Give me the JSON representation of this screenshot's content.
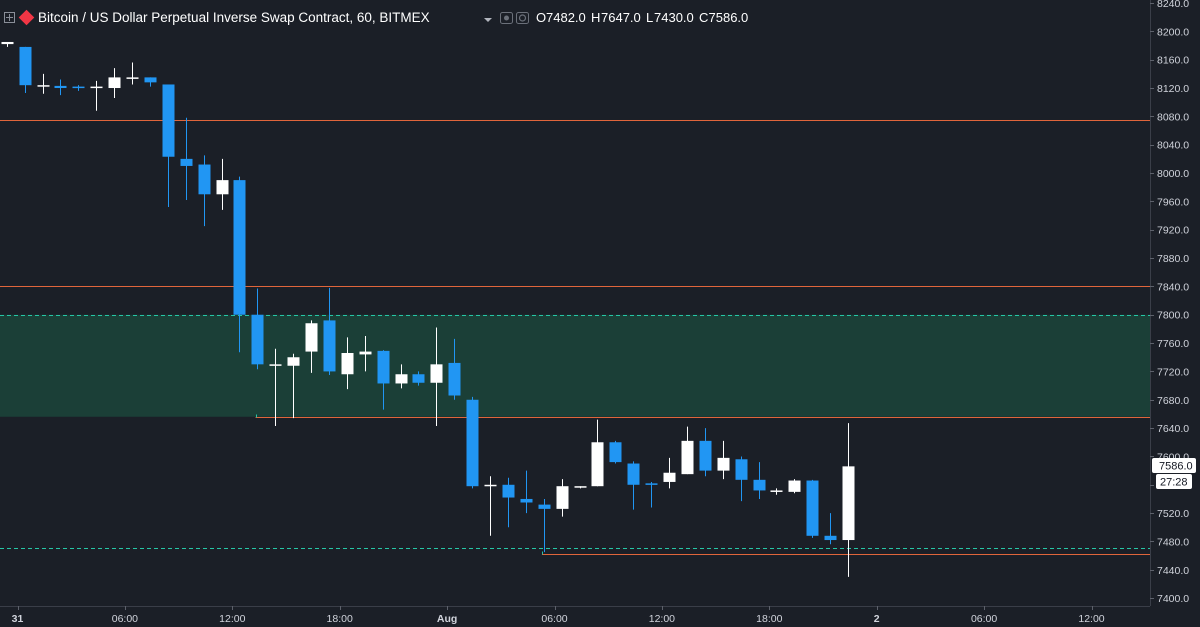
{
  "header": {
    "title": "Bitcoin / US Dollar Perpetual Inverse Swap Contract, 60, BITMEX",
    "ohlc": [
      {
        "label": "O",
        "value": "7482.0"
      },
      {
        "label": "H",
        "value": "7647.0"
      },
      {
        "label": "L",
        "value": "7430.0"
      },
      {
        "label": "C",
        "value": "7586.0"
      }
    ]
  },
  "price_tag": {
    "value": "7586.0",
    "countdown": "27:28"
  },
  "colors": {
    "background": "#1b1f27",
    "bull": "#ffffff",
    "bear": "#2196f3",
    "zone_fill": "#1b3f37",
    "level_line": "#e0653b",
    "dashed_line": "#26c6a6",
    "axis_text": "#d1d4dc"
  },
  "chart_data": {
    "type": "candlestick",
    "x_axis": {
      "ticks": [
        {
          "label": "31",
          "hour": 0
        },
        {
          "label": "06:00",
          "hour": 6
        },
        {
          "label": "12:00",
          "hour": 12
        },
        {
          "label": "18:00",
          "hour": 18
        },
        {
          "label": "Aug",
          "hour": 24
        },
        {
          "label": "06:00",
          "hour": 30
        },
        {
          "label": "12:00",
          "hour": 36
        },
        {
          "label": "18:00",
          "hour": 42
        },
        {
          "label": "2",
          "hour": 48
        },
        {
          "label": "06:00",
          "hour": 54
        },
        {
          "label": "12:00",
          "hour": 60
        }
      ]
    },
    "y_axis": {
      "ylim": [
        7388,
        8248
      ],
      "ticks": [
        8240.0,
        8200.0,
        8160.0,
        8120.0,
        8080.0,
        8040.0,
        8000.0,
        7960.0,
        7920.0,
        7880.0,
        7840.0,
        7800.0,
        7760.0,
        7720.0,
        7680.0,
        7640.0,
        7600.0,
        7560.0,
        7520.0,
        7480.0,
        7440.0,
        7400.0
      ]
    },
    "candles": [
      {
        "hour": -0.6,
        "o": 8182,
        "h": 8185,
        "l": 8178,
        "c": 8185
      },
      {
        "hour": 0.4,
        "o": 8178,
        "h": 8178,
        "l": 8113,
        "c": 8124
      },
      {
        "hour": 1.4,
        "o": 8124,
        "h": 8140,
        "l": 8112,
        "c": 8124
      },
      {
        "hour": 2.4,
        "o": 8123,
        "h": 8132,
        "l": 8110,
        "c": 8120
      },
      {
        "hour": 3.4,
        "o": 8122,
        "h": 8124,
        "l": 8116,
        "c": 8120
      },
      {
        "hour": 4.4,
        "o": 8120,
        "h": 8130,
        "l": 8088,
        "c": 8122
      },
      {
        "hour": 5.4,
        "o": 8120,
        "h": 8148,
        "l": 8106,
        "c": 8135
      },
      {
        "hour": 6.4,
        "o": 8133,
        "h": 8156,
        "l": 8125,
        "c": 8135
      },
      {
        "hour": 7.4,
        "o": 8135,
        "h": 8135,
        "l": 8122,
        "c": 8128
      },
      {
        "hour": 8.4,
        "o": 8125,
        "h": 8125,
        "l": 7952,
        "c": 8023
      },
      {
        "hour": 9.4,
        "o": 8020,
        "h": 8078,
        "l": 7962,
        "c": 8010
      },
      {
        "hour": 10.4,
        "o": 8012,
        "h": 8025,
        "l": 7925,
        "c": 7970
      },
      {
        "hour": 11.4,
        "o": 7970,
        "h": 8020,
        "l": 7948,
        "c": 7990
      },
      {
        "hour": 12.4,
        "o": 7990,
        "h": 7995,
        "l": 7747,
        "c": 7800
      },
      {
        "hour": 13.4,
        "o": 7800,
        "h": 7837,
        "l": 7723,
        "c": 7730
      },
      {
        "hour": 14.4,
        "o": 7730,
        "h": 7752,
        "l": 7643,
        "c": 7730
      },
      {
        "hour": 15.4,
        "o": 7728,
        "h": 7745,
        "l": 7654,
        "c": 7740
      },
      {
        "hour": 16.4,
        "o": 7748,
        "h": 7792,
        "l": 7718,
        "c": 7788
      },
      {
        "hour": 17.4,
        "o": 7792,
        "h": 7838,
        "l": 7715,
        "c": 7720
      },
      {
        "hour": 18.4,
        "o": 7716,
        "h": 7768,
        "l": 7695,
        "c": 7746
      },
      {
        "hour": 19.4,
        "o": 7744,
        "h": 7770,
        "l": 7720,
        "c": 7748
      },
      {
        "hour": 20.4,
        "o": 7749,
        "h": 7750,
        "l": 7666,
        "c": 7703
      },
      {
        "hour": 21.4,
        "o": 7703,
        "h": 7730,
        "l": 7696,
        "c": 7716
      },
      {
        "hour": 22.4,
        "o": 7716,
        "h": 7720,
        "l": 7700,
        "c": 7704
      },
      {
        "hour": 23.4,
        "o": 7704,
        "h": 7782,
        "l": 7643,
        "c": 7730
      },
      {
        "hour": 24.4,
        "o": 7732,
        "h": 7766,
        "l": 7680,
        "c": 7686
      },
      {
        "hour": 25.4,
        "o": 7680,
        "h": 7684,
        "l": 7555,
        "c": 7558
      },
      {
        "hour": 26.4,
        "o": 7558,
        "h": 7572,
        "l": 7488,
        "c": 7560
      },
      {
        "hour": 27.4,
        "o": 7560,
        "h": 7570,
        "l": 7500,
        "c": 7542
      },
      {
        "hour": 28.4,
        "o": 7540,
        "h": 7580,
        "l": 7520,
        "c": 7535
      },
      {
        "hour": 29.4,
        "o": 7532,
        "h": 7540,
        "l": 7465,
        "c": 7526
      },
      {
        "hour": 30.4,
        "o": 7526,
        "h": 7568,
        "l": 7515,
        "c": 7558
      },
      {
        "hour": 31.4,
        "o": 7558,
        "h": 7558,
        "l": 7555,
        "c": 7558
      },
      {
        "hour": 32.4,
        "o": 7558,
        "h": 7652,
        "l": 7558,
        "c": 7620
      },
      {
        "hour": 33.4,
        "o": 7620,
        "h": 7622,
        "l": 7590,
        "c": 7592
      },
      {
        "hour": 34.4,
        "o": 7590,
        "h": 7593,
        "l": 7525,
        "c": 7560
      },
      {
        "hour": 35.4,
        "o": 7562,
        "h": 7564,
        "l": 7528,
        "c": 7560
      },
      {
        "hour": 36.4,
        "o": 7564,
        "h": 7598,
        "l": 7555,
        "c": 7577
      },
      {
        "hour": 37.4,
        "o": 7575,
        "h": 7642,
        "l": 7575,
        "c": 7622
      },
      {
        "hour": 38.4,
        "o": 7622,
        "h": 7640,
        "l": 7572,
        "c": 7580
      },
      {
        "hour": 39.4,
        "o": 7580,
        "h": 7622,
        "l": 7568,
        "c": 7598
      },
      {
        "hour": 40.4,
        "o": 7596,
        "h": 7600,
        "l": 7537,
        "c": 7567
      },
      {
        "hour": 41.4,
        "o": 7567,
        "h": 7592,
        "l": 7540,
        "c": 7552
      },
      {
        "hour": 42.4,
        "o": 7552,
        "h": 7555,
        "l": 7546,
        "c": 7552
      },
      {
        "hour": 43.4,
        "o": 7550,
        "h": 7568,
        "l": 7548,
        "c": 7566
      },
      {
        "hour": 44.4,
        "o": 7566,
        "h": 7567,
        "l": 7485,
        "c": 7488
      },
      {
        "hour": 45.4,
        "o": 7488,
        "h": 7520,
        "l": 7476,
        "c": 7482
      },
      {
        "hour": 46.4,
        "o": 7482,
        "h": 7647,
        "l": 7430,
        "c": 7586
      }
    ],
    "levels": [
      {
        "type": "line",
        "price": 8075,
        "from_hour": -1,
        "to_hour": 64
      },
      {
        "type": "line",
        "price": 7841,
        "from_hour": -1,
        "to_hour": 64
      },
      {
        "type": "zone",
        "from_price": 7656,
        "to_price": 7800,
        "from_hour": -1,
        "to_hour": 64
      },
      {
        "type": "line",
        "price": 7656,
        "from_hour": 13.3,
        "to_hour": 64
      },
      {
        "type": "dashed",
        "price": 7800,
        "from_hour": -1,
        "to_hour": 64
      },
      {
        "type": "dashed",
        "price": 7471,
        "from_hour": -1,
        "to_hour": 64
      },
      {
        "type": "line",
        "price": 7462,
        "from_hour": 29.3,
        "to_hour": 64
      }
    ]
  }
}
